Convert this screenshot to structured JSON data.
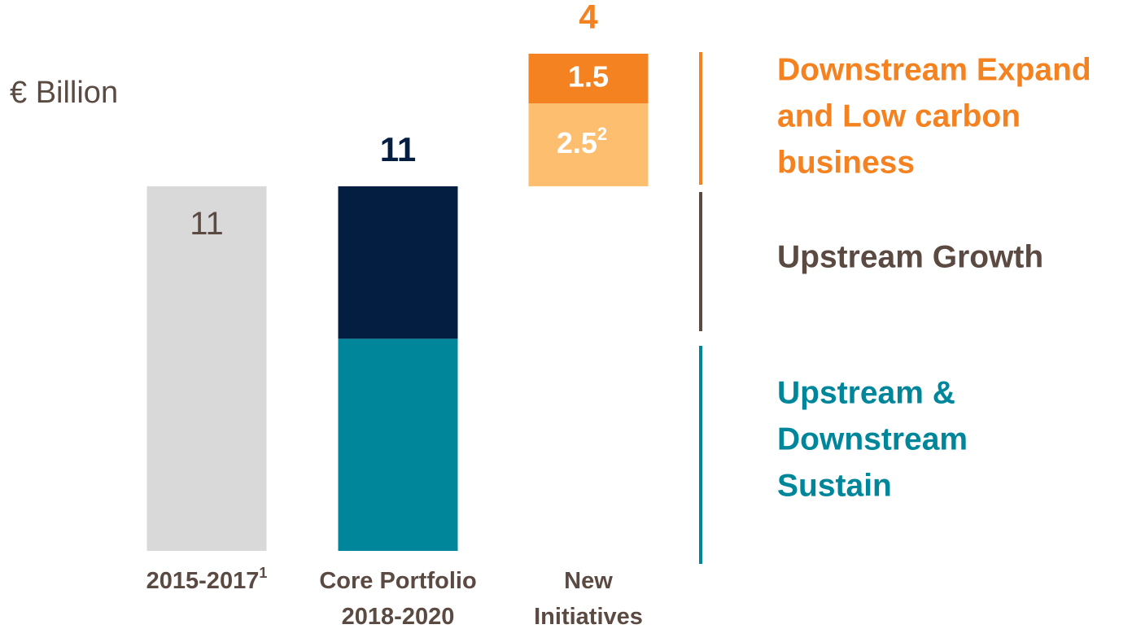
{
  "chart_data": {
    "type": "waterfall",
    "unit_label": "€ Billion",
    "categories": [
      [
        "2015-2017"
      ],
      [
        "Core Portfolio",
        "2018-2020"
      ],
      [
        "New",
        "Initiatives"
      ]
    ],
    "category_footnotes": [
      "1",
      null,
      null
    ],
    "floating": [
      false,
      false,
      true
    ],
    "totals": [
      null,
      11,
      4
    ],
    "total_colors": [
      null,
      "#041e42",
      "#f58220"
    ],
    "ylim": [
      0,
      15
    ],
    "series": [
      {
        "color": "#d9d9d9",
        "values": [
          11,
          null,
          null
        ],
        "show_labels": true,
        "label_color": "#5b4a42"
      },
      {
        "color": "#00869b",
        "values": [
          null,
          6.4,
          null
        ]
      },
      {
        "color": "#041e42",
        "values": [
          null,
          4.6,
          null
        ]
      },
      {
        "color": "#fdbf6f",
        "values": [
          null,
          null,
          2.5
        ],
        "show_labels": true,
        "label_color": "#ffffff",
        "footnotes": [
          null,
          null,
          "2"
        ]
      },
      {
        "color": "#f58220",
        "values": [
          null,
          null,
          1.5
        ],
        "show_labels": true,
        "label_color": "#ffffff"
      }
    ],
    "legend": [
      {
        "text": [
          "Downstream Expand",
          "and Low carbon",
          "business"
        ],
        "color": "#f58220"
      },
      {
        "text": [
          "Upstream Growth"
        ],
        "color": "#5b4a42"
      },
      {
        "text": [
          "Upstream &",
          "Downstream",
          "Sustain"
        ],
        "color": "#00869b"
      }
    ]
  }
}
